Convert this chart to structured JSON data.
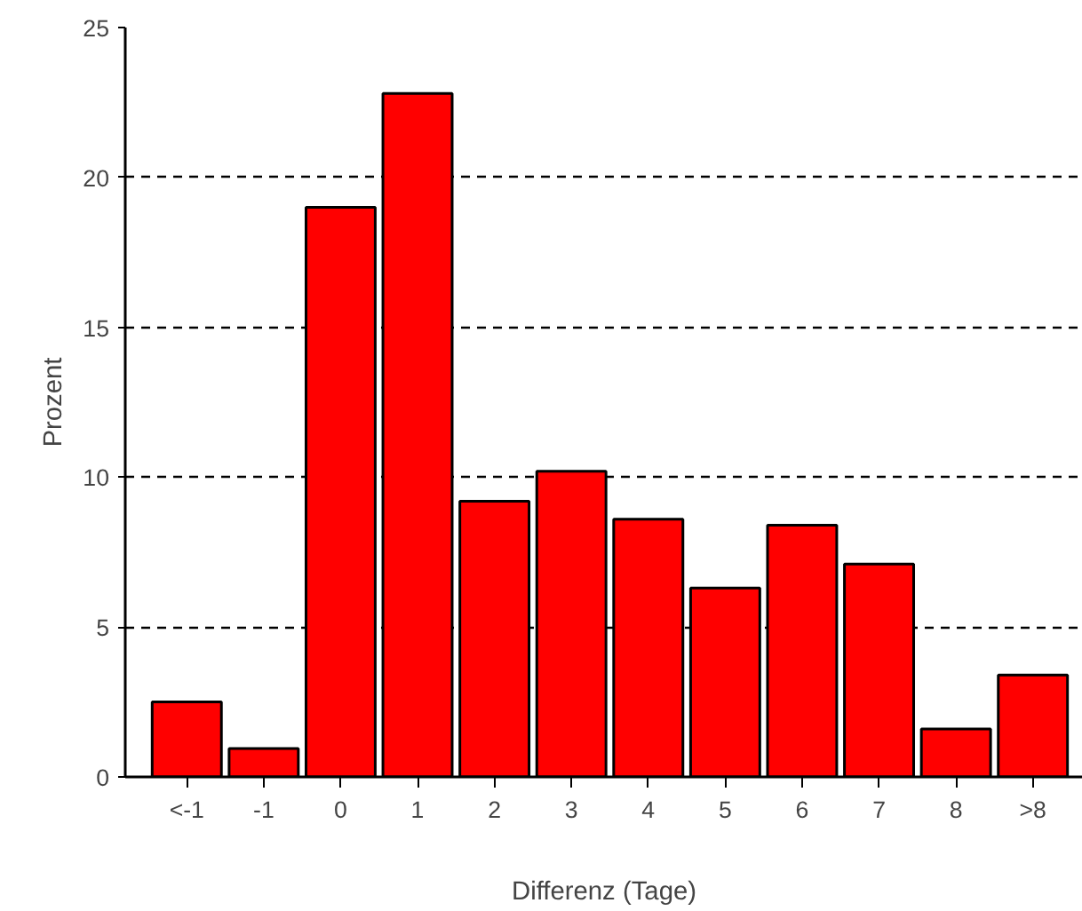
{
  "chart_data": {
    "type": "bar",
    "xlabel": "Differenz (Tage)",
    "ylabel": "Prozent",
    "categories": [
      "<-1",
      "-1",
      "0",
      "1",
      "2",
      "3",
      "4",
      "5",
      "6",
      "7",
      "8",
      ">8"
    ],
    "values": [
      2.5,
      0.95,
      19.0,
      22.8,
      9.2,
      10.2,
      8.6,
      6.3,
      8.4,
      7.1,
      1.6,
      3.4
    ],
    "color": "#ff0000",
    "ylim": [
      0,
      25
    ],
    "yticks": [
      0,
      5,
      10,
      15,
      20,
      25
    ],
    "grid": "y"
  }
}
